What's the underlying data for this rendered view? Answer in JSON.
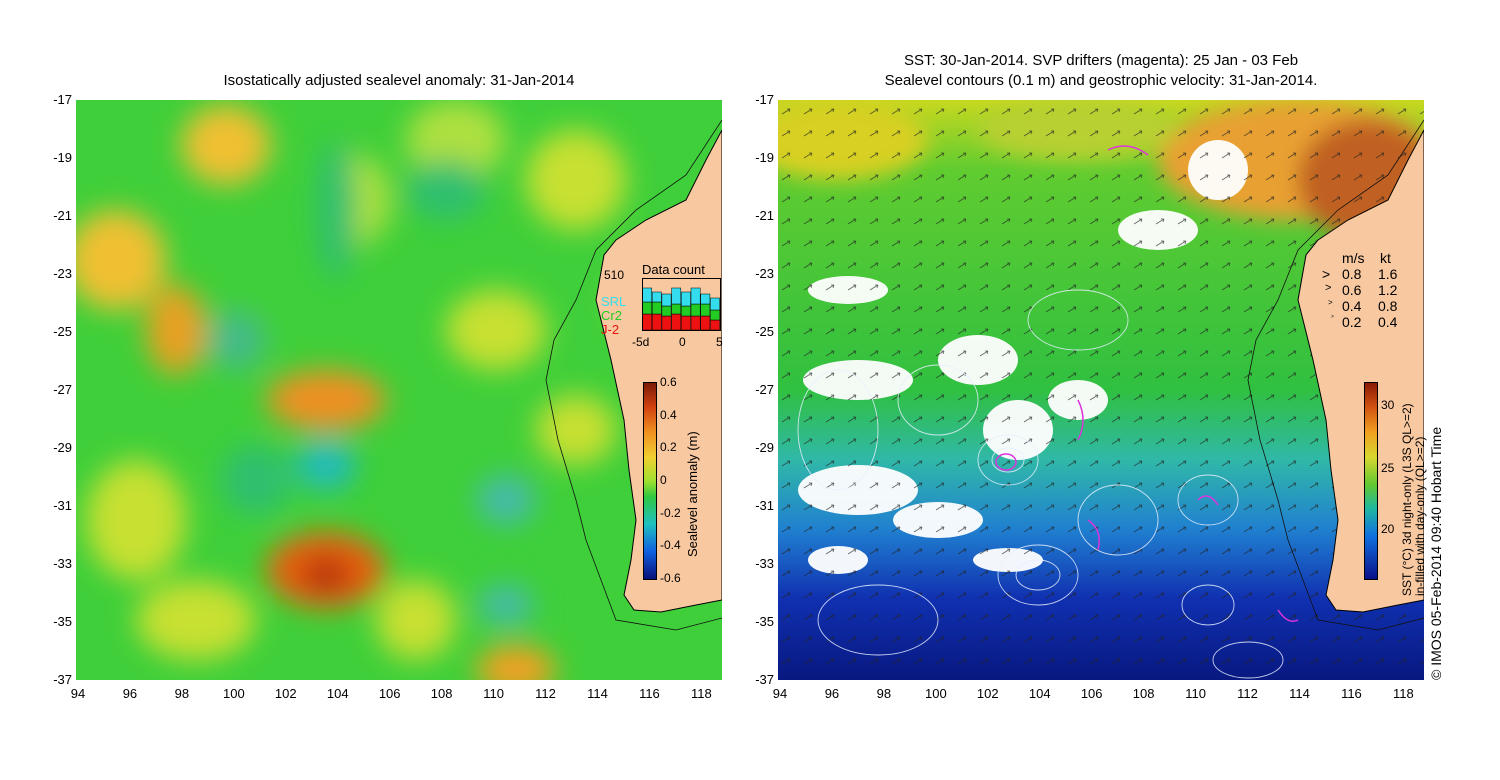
{
  "left": {
    "title": "Isostatically adjusted sealevel anomaly: 31-Jan-2014",
    "y_ticks": [
      "-17",
      "-19",
      "-21",
      "-23",
      "-25",
      "-27",
      "-29",
      "-31",
      "-33",
      "-35",
      "-37"
    ],
    "x_ticks": [
      "94",
      "96",
      "98",
      "100",
      "102",
      "104",
      "106",
      "108",
      "110",
      "112",
      "114",
      "116",
      "118"
    ],
    "colorbar": {
      "label": "Sealevel anomaly (m)",
      "ticks": [
        "0.6",
        "0.4",
        "0.2",
        "0",
        "-0.2",
        "-0.4",
        "-0.6"
      ]
    },
    "data_count": {
      "title": "Data count",
      "max_label": "510",
      "missions": [
        "SRL",
        "Cr2",
        "J-2"
      ],
      "mission_colors": [
        "#33ddee",
        "#22cc22",
        "#ee1111"
      ],
      "axis_ticks": [
        "-5d",
        "0",
        "5"
      ]
    }
  },
  "right": {
    "title_line1": "SST: 30-Jan-2014. SVP drifters (magenta): 25 Jan - 03 Feb",
    "title_line2": "Sealevel contours (0.1 m) and geostrophic velocity: 31-Jan-2014.",
    "y_ticks": [
      "-17",
      "-19",
      "-21",
      "-23",
      "-25",
      "-27",
      "-29",
      "-31",
      "-33",
      "-35",
      "-37"
    ],
    "x_ticks": [
      "94",
      "96",
      "98",
      "100",
      "102",
      "104",
      "106",
      "108",
      "110",
      "112",
      "114",
      "116",
      "118"
    ],
    "speed_legend": {
      "header_ms": "m/s",
      "header_kt": "kt",
      "rows": [
        {
          "ms": "0.8",
          "kt": "1.6"
        },
        {
          "ms": "0.6",
          "kt": "1.2"
        },
        {
          "ms": "0.4",
          "kt": "0.8"
        },
        {
          "ms": "0.2",
          "kt": "0.4"
        }
      ]
    },
    "colorbar": {
      "label_line1": "SST (°C) 3d night-only (L3S QL>=2)",
      "label_line2": "in-filled with day-only (QL>=2)",
      "ticks": [
        "30",
        "25",
        "20"
      ]
    },
    "credit": "© IMOS 05-Feb-2014 09:40 Hobart Time"
  },
  "colors": {
    "land": "#f8c8a0",
    "ocean_green": "#33cc33",
    "coast": "#000000"
  }
}
